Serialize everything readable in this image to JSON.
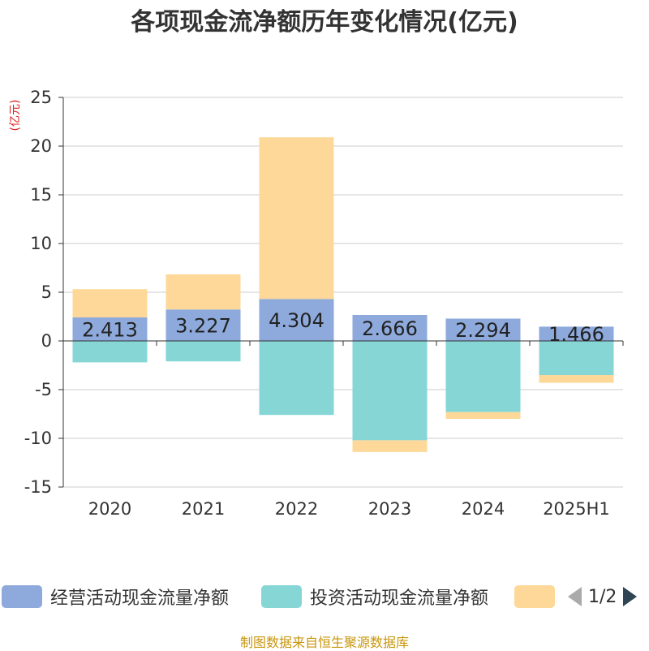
{
  "title": "各项现金流净额历年变化情况(亿元)",
  "unit_label": "(亿元)",
  "legend": {
    "items": [
      {
        "label": "经营活动现金流量净额",
        "color": "#8eaadc"
      },
      {
        "label": "投资活动现金流量净额",
        "color": "#86d6d6"
      },
      {
        "label": "",
        "color": "#fdd898"
      }
    ],
    "page_text": "1/2"
  },
  "source": "制图数据来自恒生聚源数据库",
  "chart_data": {
    "type": "bar",
    "stacked": true,
    "categories": [
      "2020",
      "2021",
      "2022",
      "2023",
      "2024",
      "2025H1"
    ],
    "ylim": [
      -15,
      25
    ],
    "yticks": [
      25,
      20,
      15,
      10,
      5,
      0,
      -5,
      -10,
      -15
    ],
    "grid": true,
    "series": [
      {
        "name": "经营活动现金流量净额",
        "color": "#8eaadc",
        "values": [
          2.413,
          3.227,
          4.304,
          2.666,
          2.294,
          1.466
        ],
        "labels": [
          "2.413",
          "3.227",
          "4.304",
          "2.666",
          "2.294",
          "1.466"
        ]
      },
      {
        "name": "投资活动现金流量净额",
        "color": "#86d6d6",
        "values": [
          -2.2,
          -2.1,
          -7.6,
          -10.2,
          -7.3,
          -3.5
        ]
      },
      {
        "color": "#fdd898",
        "values": [
          2.9,
          3.6,
          16.6,
          -1.2,
          -0.7,
          -0.8
        ]
      }
    ]
  }
}
